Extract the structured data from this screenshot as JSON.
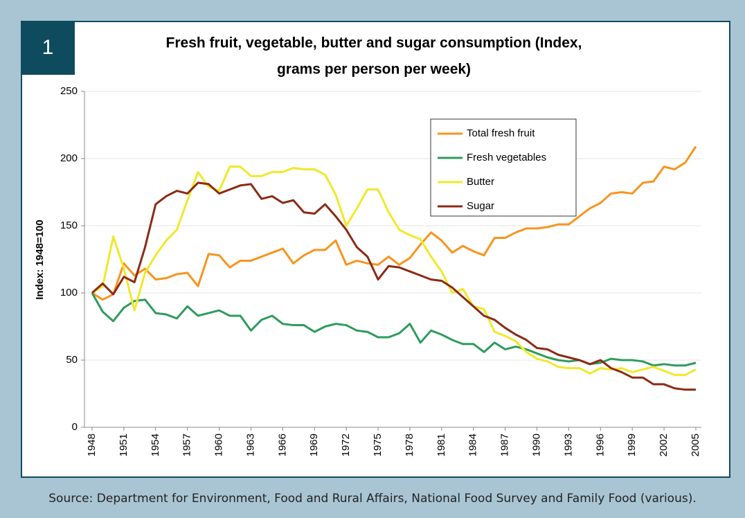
{
  "badge": "1",
  "source": "Source: Department for Environment, Food and Rural Affairs, National Food Survey and Family Food (various).",
  "chart_data": {
    "type": "line",
    "title": "Fresh fruit, vegetable, butter and sugar consumption (Index, grams per person per week)",
    "y_label": "Index: 1948=100",
    "x": [
      1948,
      1949,
      1950,
      1951,
      1952,
      1953,
      1954,
      1955,
      1956,
      1957,
      1958,
      1959,
      1960,
      1961,
      1962,
      1963,
      1964,
      1965,
      1966,
      1967,
      1968,
      1969,
      1970,
      1971,
      1972,
      1973,
      1974,
      1975,
      1976,
      1977,
      1978,
      1979,
      1980,
      1981,
      1982,
      1983,
      1984,
      1985,
      1986,
      1987,
      1988,
      1989,
      1990,
      1991,
      1992,
      1993,
      1994,
      1995,
      1996,
      1997,
      1998,
      1999,
      2000,
      2001,
      2002,
      2003,
      2004,
      2005
    ],
    "series": [
      {
        "name": "Total fresh fruit",
        "color": "#f7941d",
        "values": [
          100,
          95,
          99,
          122,
          113,
          118,
          110,
          111,
          114,
          115,
          105,
          129,
          128,
          119,
          124,
          124,
          127,
          130,
          133,
          122,
          128,
          132,
          132,
          139,
          121,
          124,
          122,
          121,
          127,
          121,
          126,
          136,
          145,
          139,
          130,
          135,
          131,
          128,
          141,
          141,
          145,
          148,
          148,
          149,
          151,
          151,
          157,
          163,
          167,
          174,
          175,
          174,
          182,
          183,
          194,
          192,
          197,
          209
        ]
      },
      {
        "name": "Fresh vegetables",
        "color": "#2e9b5c",
        "values": [
          100,
          86,
          79,
          89,
          94,
          95,
          85,
          84,
          81,
          90,
          83,
          85,
          87,
          83,
          83,
          72,
          80,
          83,
          77,
          76,
          76,
          71,
          75,
          77,
          76,
          72,
          71,
          67,
          67,
          70,
          77,
          63,
          72,
          69,
          65,
          62,
          62,
          56,
          63,
          58,
          60,
          58,
          55,
          52,
          50,
          49,
          50,
          47,
          48,
          51,
          50,
          50,
          49,
          46,
          47,
          46,
          46,
          48
        ]
      },
      {
        "name": "Butter",
        "color": "#f0e82a",
        "values": [
          100,
          105,
          142,
          118,
          87,
          115,
          128,
          139,
          147,
          169,
          190,
          179,
          176,
          194,
          194,
          187,
          187,
          190,
          190,
          193,
          192,
          192,
          188,
          173,
          150,
          163,
          177,
          177,
          160,
          147,
          143,
          140,
          127,
          116,
          100,
          103,
          90,
          88,
          71,
          68,
          64,
          56,
          51,
          49,
          45,
          44,
          44,
          40,
          44,
          43,
          44,
          41,
          43,
          45,
          42,
          39,
          39,
          43
        ]
      },
      {
        "name": "Sugar",
        "color": "#8b2a14",
        "values": [
          100,
          107,
          99,
          112,
          108,
          134,
          166,
          172,
          176,
          174,
          182,
          181,
          174,
          177,
          180,
          181,
          170,
          172,
          167,
          169,
          160,
          159,
          166,
          157,
          147,
          134,
          127,
          110,
          120,
          119,
          116,
          113,
          110,
          109,
          104,
          97,
          90,
          83,
          80,
          74,
          69,
          65,
          59,
          58,
          54,
          52,
          50,
          47,
          50,
          44,
          41,
          37,
          37,
          32,
          32,
          29,
          28,
          28
        ]
      }
    ],
    "xlim": [
      1948,
      2005
    ],
    "xticks": [
      1948,
      1951,
      1954,
      1957,
      1960,
      1963,
      1966,
      1969,
      1972,
      1975,
      1978,
      1981,
      1984,
      1987,
      1990,
      1993,
      1996,
      1999,
      2002,
      2005
    ],
    "ylim": [
      0,
      250
    ],
    "yticks": [
      0,
      50,
      100,
      150,
      200,
      250
    ],
    "grid": true
  }
}
